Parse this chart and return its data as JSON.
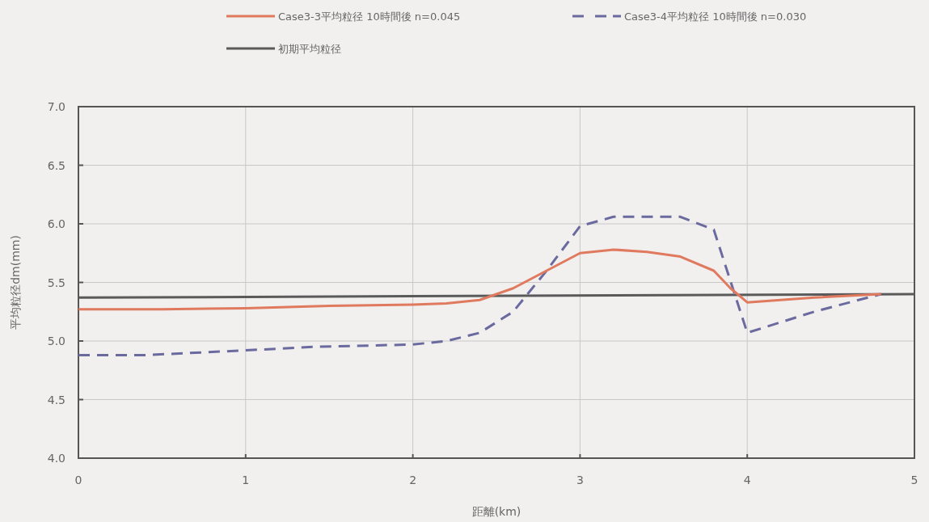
{
  "chart_data": {
    "type": "line",
    "xlabel": "距離(km)",
    "ylabel": "平均粒径dm(mm)",
    "xlim": [
      0,
      5
    ],
    "xticks": [
      0,
      1,
      2,
      3,
      4,
      5
    ],
    "ylim": [
      4.0,
      7.0
    ],
    "yticks": [
      {
        "value": 4.0,
        "label": "4.0"
      },
      {
        "value": 4.5,
        "label": "4.5"
      },
      {
        "value": 5.0,
        "label": "5.0"
      },
      {
        "value": 5.5,
        "label": "5.5"
      },
      {
        "value": 6.0,
        "label": "6.0"
      },
      {
        "value": 6.5,
        "label": "6.5"
      },
      {
        "value": 7.0,
        "label": "7.0"
      }
    ],
    "grid": true,
    "legend": "top",
    "marker": "none",
    "series": [
      {
        "name": "Case3-3平均粒径 10時間後 n=0.045",
        "color": "#e07a5f",
        "line_style": "solid",
        "x": [
          0,
          0.5,
          1,
          1.5,
          2,
          2.2,
          2.4,
          2.6,
          2.8,
          3.0,
          3.2,
          3.4,
          3.6,
          3.8,
          3.9,
          4.0,
          4.4,
          4.8
        ],
        "values": [
          5.27,
          5.27,
          5.28,
          5.3,
          5.31,
          5.32,
          5.35,
          5.45,
          5.6,
          5.75,
          5.78,
          5.76,
          5.72,
          5.6,
          5.45,
          5.33,
          5.37,
          5.4
        ]
      },
      {
        "name": "Case3-4平均粒径 10時間後 n=0.030",
        "color": "#6a6a9e",
        "line_style": "dashed",
        "x": [
          0,
          0.4,
          1,
          1.4,
          2,
          2.2,
          2.4,
          2.6,
          2.8,
          3.0,
          3.2,
          3.6,
          3.8,
          4.0,
          4.4,
          4.8
        ],
        "values": [
          4.88,
          4.88,
          4.92,
          4.95,
          4.97,
          5.0,
          5.07,
          5.25,
          5.6,
          5.98,
          6.06,
          6.06,
          5.95,
          5.07,
          5.25,
          5.4
        ]
      },
      {
        "name": "初期平均粒径",
        "color": "#5a5a5a",
        "line_style": "solid",
        "x": [
          0,
          5
        ],
        "values": [
          5.37,
          5.4
        ]
      }
    ]
  }
}
